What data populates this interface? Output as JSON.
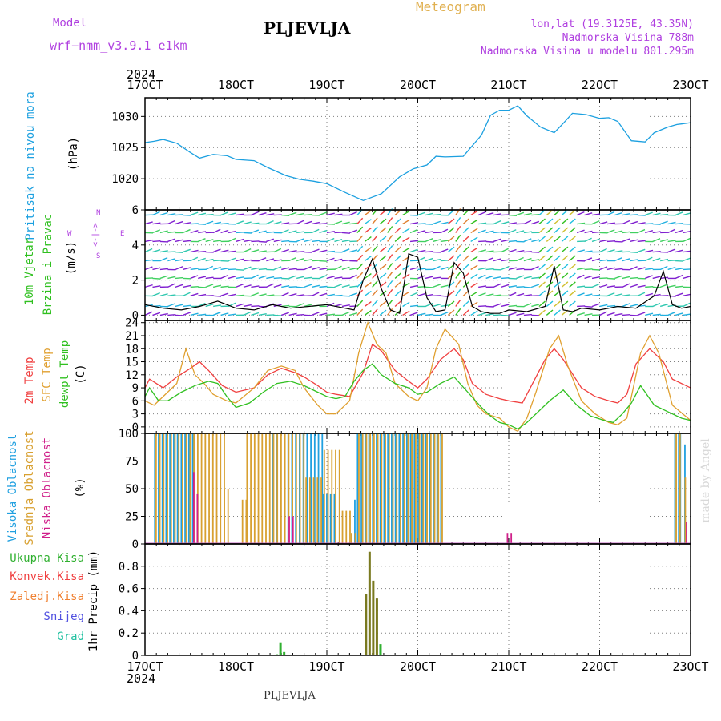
{
  "header": {
    "model_label": "Model",
    "model_name": "wrf−nmm_v3.9.1  e1km",
    "station": "PLJEVLJA",
    "product": "Meteogram",
    "coords": "lon,lat (19.3125E, 43.35N)",
    "altitude": "Nadmorska Visina 788m",
    "model_altitude": "Nadmorska Visina u modelu 801.295m",
    "watermark": "made by Angel",
    "footer_station": "PLJEVLJA"
  },
  "colors": {
    "pressure": "#1ca0e0",
    "t2m": "#f04040",
    "sfc": "#e0a030",
    "dewpt": "#30c020",
    "cloud_high": "#20a0e0",
    "cloud_mid": "#d8a030",
    "cloud_low": "#d0208a",
    "precip_total": "#30b030",
    "precip_conv": "#f04040",
    "precip_frozen": "#f08030",
    "precip_snow": "#5050e0",
    "precip_grad": "#20c0a0",
    "purple": "#b040e0"
  },
  "time_axis": {
    "year": "2024",
    "tick_labels": [
      "17OCT",
      "18OCT",
      "19OCT",
      "20OCT",
      "21OCT",
      "22OCT",
      "23OCT"
    ]
  },
  "legends": {
    "pressure": "Pritisak na nivou mora",
    "pressure_unit": "(hPa)",
    "wind_1": "10m Vjetar",
    "wind_2": "Brzina i Pravac",
    "wind_unit": "(m/s)",
    "wind_compass_w": "W",
    "wind_compass_e": "E",
    "wind_compass_n": "N",
    "wind_compass_s": "S",
    "wind_compass_arrows": "<-|->",
    "temp_2m": "2m Temp",
    "temp_sfc": "SFC Temp",
    "temp_dewpt": "dewpt Temp",
    "temp_unit": "(C)",
    "cloud_high": "Visoka Oblacnost",
    "cloud_mid": "Srednja Oblacnost",
    "cloud_low": "Niska Oblacnost",
    "cloud_unit": "(%)",
    "precip_total": "Ukupna Kisa",
    "precip_conv": "Konvek.Kisa",
    "precip_frozen": "Zaledj.Kisa",
    "precip_snow": "Snijeg",
    "precip_grad": "Grad",
    "precip_axis": "1hr Precip (mm)"
  },
  "chart_data": [
    {
      "type": "line",
      "panel": "pressure",
      "x_unit": "days since 17OCT 00UTC",
      "xlim": [
        0,
        6
      ],
      "ylim": [
        1015,
        1033
      ],
      "yticks": [
        1020,
        1025,
        1030
      ],
      "ylabel": "(hPa)",
      "series": [
        {
          "name": "Pritisak na nivou mora",
          "x": [
            0,
            0.1,
            0.2,
            0.35,
            0.5,
            0.6,
            0.75,
            0.9,
            1.0,
            1.2,
            1.35,
            1.55,
            1.7,
            1.85,
            2.0,
            2.2,
            2.4,
            2.6,
            2.8,
            2.95,
            3.1,
            3.2,
            3.3,
            3.5,
            3.7,
            3.8,
            3.9,
            4.0,
            4.1,
            4.2,
            4.35,
            4.5,
            4.6,
            4.7,
            4.85,
            5.0,
            5.1,
            5.2,
            5.35,
            5.5,
            5.6,
            5.75,
            5.85,
            5.9,
            6.0
          ],
          "y": [
            1025.8,
            1026.0,
            1026.3,
            1025.7,
            1024.2,
            1023.3,
            1023.9,
            1023.7,
            1023.1,
            1022.9,
            1021.8,
            1020.5,
            1019.9,
            1019.6,
            1019.2,
            1017.8,
            1016.5,
            1017.6,
            1020.3,
            1021.6,
            1022.2,
            1023.6,
            1023.5,
            1023.6,
            1027.0,
            1030.2,
            1031.0,
            1031.0,
            1031.7,
            1030.1,
            1028.3,
            1027.4,
            1028.9,
            1030.5,
            1030.3,
            1029.7,
            1029.8,
            1029.2,
            1026.1,
            1025.9,
            1027.4,
            1028.3,
            1028.7,
            1028.8,
            1029.0
          ]
        }
      ]
    },
    {
      "type": "line",
      "panel": "wind",
      "x_unit": "days since 17OCT 00UTC",
      "xlim": [
        0,
        6
      ],
      "ylim": [
        -0.3,
        6
      ],
      "yticks": [
        0,
        2,
        4,
        6
      ],
      "ylabel": "(m/s)",
      "series": [
        {
          "name": "Brzina",
          "x": [
            0,
            0.2,
            0.4,
            0.6,
            0.8,
            1.0,
            1.2,
            1.4,
            1.6,
            1.8,
            2.0,
            2.2,
            2.3,
            2.4,
            2.5,
            2.6,
            2.7,
            2.8,
            2.9,
            3.0,
            3.1,
            3.2,
            3.3,
            3.4,
            3.5,
            3.6,
            3.7,
            3.8,
            3.9,
            4.0,
            4.2,
            4.4,
            4.5,
            4.6,
            4.7,
            4.8,
            5.0,
            5.2,
            5.4,
            5.6,
            5.7,
            5.8,
            5.9,
            6.0
          ],
          "y": [
            0.6,
            0.4,
            0.3,
            0.5,
            0.8,
            0.4,
            0.3,
            0.6,
            0.4,
            0.5,
            0.6,
            0.4,
            0.3,
            2.0,
            3.2,
            1.5,
            0.3,
            0.1,
            3.5,
            3.3,
            1.0,
            0.2,
            0.3,
            3.0,
            2.4,
            0.5,
            0.2,
            0.1,
            0.1,
            0.3,
            0.2,
            0.5,
            2.8,
            0.3,
            0.2,
            0.4,
            0.3,
            0.5,
            0.4,
            1.1,
            2.5,
            0.6,
            0.4,
            0.5
          ]
        }
      ]
    },
    {
      "type": "line",
      "panel": "temperature",
      "x_unit": "days since 17OCT 00UTC",
      "xlim": [
        0,
        6
      ],
      "ylim": [
        -1.5,
        24.5
      ],
      "yticks": [
        0,
        3,
        6,
        9,
        12,
        15,
        18,
        21,
        24
      ],
      "ylabel": "(C)",
      "series": [
        {
          "name": "2m Temp",
          "x": [
            0,
            0.05,
            0.2,
            0.35,
            0.5,
            0.6,
            0.7,
            0.85,
            1.0,
            1.2,
            1.35,
            1.5,
            1.65,
            1.75,
            1.9,
            2.0,
            2.1,
            2.25,
            2.4,
            2.5,
            2.6,
            2.75,
            2.9,
            3.0,
            3.1,
            3.25,
            3.4,
            3.5,
            3.6,
            3.75,
            3.9,
            4.0,
            4.15,
            4.25,
            4.4,
            4.5,
            4.6,
            4.8,
            4.95,
            5.1,
            5.2,
            5.3,
            5.4,
            5.55,
            5.7,
            5.8,
            6.0
          ],
          "y": [
            9.0,
            11.0,
            9.0,
            11.5,
            13.5,
            15.0,
            13.0,
            9.5,
            8.0,
            9.0,
            12.0,
            13.5,
            12.5,
            11.5,
            9.5,
            8.0,
            7.5,
            7.0,
            12.5,
            19.0,
            17.5,
            13.0,
            10.5,
            9.0,
            11.0,
            15.5,
            18.0,
            15.5,
            10.0,
            7.5,
            6.5,
            6.0,
            5.5,
            9.5,
            15.5,
            18.0,
            15.5,
            9.0,
            7.0,
            6.0,
            5.5,
            7.5,
            14.5,
            18.0,
            15.0,
            11.0,
            9.0
          ]
        },
        {
          "name": "SFC Temp",
          "x": [
            0,
            0.1,
            0.2,
            0.35,
            0.45,
            0.55,
            0.65,
            0.75,
            0.9,
            1.0,
            1.2,
            1.35,
            1.5,
            1.65,
            1.75,
            1.9,
            2.0,
            2.1,
            2.25,
            2.35,
            2.45,
            2.55,
            2.65,
            2.75,
            2.9,
            3.0,
            3.1,
            3.2,
            3.3,
            3.45,
            3.55,
            3.65,
            3.75,
            3.9,
            4.0,
            4.1,
            4.2,
            4.3,
            4.45,
            4.55,
            4.65,
            4.8,
            4.95,
            5.1,
            5.2,
            5.3,
            5.45,
            5.55,
            5.65,
            5.8,
            6.0
          ],
          "y": [
            6.0,
            5.0,
            7.0,
            10.0,
            18.0,
            12.0,
            10.0,
            7.5,
            6.0,
            5.5,
            9.0,
            13.0,
            14.0,
            13.0,
            9.0,
            5.0,
            3.0,
            3.0,
            6.0,
            17.0,
            24.0,
            19.0,
            17.0,
            10.0,
            7.0,
            6.0,
            9.0,
            18.0,
            22.5,
            19.0,
            10.0,
            5.0,
            3.0,
            2.0,
            0.0,
            -1.0,
            2.0,
            8.0,
            18.0,
            21.0,
            14.0,
            6.0,
            3.0,
            1.0,
            0.5,
            2.0,
            17.0,
            21.0,
            17.0,
            5.0,
            1.5
          ]
        },
        {
          "name": "dewpt Temp",
          "x": [
            0,
            0.05,
            0.15,
            0.25,
            0.4,
            0.55,
            0.7,
            0.8,
            0.9,
            1.0,
            1.15,
            1.3,
            1.45,
            1.6,
            1.75,
            1.9,
            2.0,
            2.1,
            2.2,
            2.3,
            2.4,
            2.5,
            2.6,
            2.75,
            2.9,
            3.0,
            3.1,
            3.25,
            3.4,
            3.55,
            3.7,
            3.8,
            3.9,
            4.0,
            4.1,
            4.2,
            4.3,
            4.45,
            4.6,
            4.75,
            4.9,
            5.05,
            5.15,
            5.25,
            5.35,
            5.45,
            5.6,
            5.75,
            5.9,
            6.0
          ],
          "y": [
            7.0,
            9.0,
            6.0,
            6.0,
            8.0,
            9.5,
            10.5,
            10.0,
            7.0,
            4.5,
            5.5,
            8.0,
            10.0,
            10.5,
            9.5,
            8.0,
            7.0,
            6.5,
            7.0,
            10.5,
            13.0,
            14.5,
            12.0,
            10.0,
            9.0,
            7.5,
            8.0,
            10.0,
            11.5,
            8.0,
            4.5,
            2.5,
            1.0,
            0.5,
            -0.5,
            1.0,
            3.0,
            6.0,
            8.5,
            5.0,
            2.5,
            1.5,
            1.0,
            3.0,
            5.5,
            9.5,
            5.0,
            3.5,
            2.0,
            1.5
          ]
        }
      ]
    },
    {
      "type": "bar",
      "panel": "cloud",
      "x_unit": "days since 17OCT 00UTC",
      "xlim": [
        0,
        6
      ],
      "ylim": [
        0,
        100
      ],
      "yticks": [
        0,
        25,
        50,
        75,
        100
      ],
      "ylabel": "(%)",
      "note": "hourly bars; each entry is [start_day, end_day, value]",
      "series": [
        {
          "name": "Visoka Oblacnost",
          "segments": [
            [
              0.1,
              0.55,
              100
            ],
            [
              0.55,
              0.65,
              0
            ],
            [
              1.4,
              1.95,
              100
            ],
            [
              1.95,
              2.1,
              45
            ],
            [
              2.3,
              2.33,
              40
            ],
            [
              2.33,
              3.25,
              100
            ],
            [
              6.0,
              6.0,
              0
            ],
            [
              5.82,
              5.87,
              100
            ],
            [
              5.88,
              5.92,
              100
            ],
            [
              5.93,
              5.96,
              90
            ]
          ]
        },
        {
          "name": "Srednja Oblacnost",
          "segments": [
            [
              0.1,
              0.85,
              100
            ],
            [
              0.85,
              0.92,
              50
            ],
            [
              1.05,
              1.1,
              40
            ],
            [
              1.1,
              1.75,
              100
            ],
            [
              1.75,
              1.95,
              60
            ],
            [
              1.95,
              2.15,
              85
            ],
            [
              2.15,
              2.25,
              30
            ],
            [
              2.25,
              2.3,
              10
            ],
            [
              2.33,
              3.25,
              100
            ],
            [
              5.82,
              5.87,
              100
            ],
            [
              5.92,
              5.96,
              60
            ]
          ]
        },
        {
          "name": "Niska Oblacnost",
          "segments": [
            [
              0.5,
              0.54,
              65
            ],
            [
              0.54,
              0.58,
              45
            ],
            [
              1.55,
              1.6,
              25
            ],
            [
              3.95,
              4.0,
              10
            ],
            [
              5.92,
              5.96,
              20
            ]
          ]
        }
      ]
    },
    {
      "type": "bar",
      "panel": "precip",
      "x_unit": "days since 17OCT 00UTC",
      "xlim": [
        0,
        6
      ],
      "ylim": [
        0,
        1.0
      ],
      "yticks": [
        0,
        0.2,
        0.4,
        0.6,
        0.8
      ],
      "ylabel": "1hr Precip (mm)",
      "series": [
        {
          "name": "Ukupna Kisa",
          "x": [
            1.45,
            1.49,
            1.53,
            2.43,
            2.47,
            2.51,
            2.55,
            2.59
          ],
          "y": [
            0.01,
            0.11,
            0.03,
            0.55,
            0.93,
            0.67,
            0.51,
            0.1
          ]
        },
        {
          "name": "Konvek.Kisa",
          "x": [],
          "y": []
        },
        {
          "name": "Zaledj.Kisa",
          "x": [],
          "y": []
        },
        {
          "name": "Snijeg",
          "x": [],
          "y": []
        },
        {
          "name": "Grad",
          "x": [],
          "y": []
        }
      ]
    }
  ]
}
